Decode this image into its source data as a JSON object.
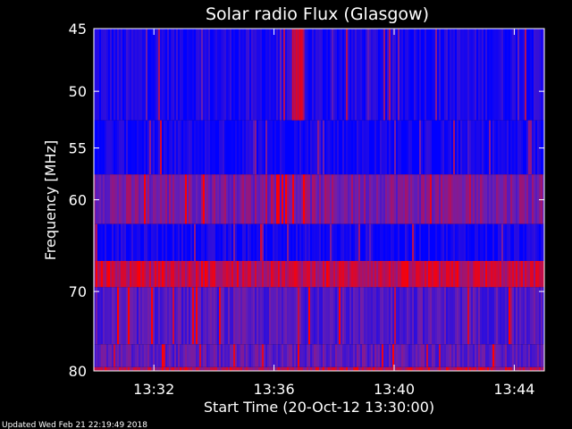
{
  "chart_data": {
    "type": "heatmap",
    "title": "Solar radio Flux (Glasgow)",
    "xlabel": "Start Time (20-Oct-12 13:30:00)",
    "ylabel": "Frequency [MHz]",
    "x_ticks": [
      "13:32",
      "13:36",
      "13:40",
      "13:44"
    ],
    "x_tick_minutes": [
      2,
      6,
      10,
      14
    ],
    "xlim_minutes": [
      0,
      15
    ],
    "y_ticks": [
      45,
      50,
      55,
      60,
      70,
      80
    ],
    "ylim": [
      45,
      80
    ],
    "y_scale": "log",
    "colormap": {
      "low": "#0000ff",
      "mid": "#6a1fb0",
      "high": "#ff0000"
    },
    "frequency_bands": [
      {
        "from_mhz": 45,
        "to_mhz": 52.5,
        "intensity": 0.12
      },
      {
        "from_mhz": 52.5,
        "to_mhz": 57.5,
        "intensity": 0.08
      },
      {
        "from_mhz": 57.5,
        "to_mhz": 62.5,
        "intensity": 0.55
      },
      {
        "from_mhz": 62.5,
        "to_mhz": 66.5,
        "intensity": 0.07
      },
      {
        "from_mhz": 66.5,
        "to_mhz": 69.5,
        "intensity": 0.78
      },
      {
        "from_mhz": 69.5,
        "to_mhz": 76.5,
        "intensity": 0.38
      },
      {
        "from_mhz": 76.5,
        "to_mhz": 79.5,
        "intensity": 0.42
      },
      {
        "from_mhz": 79.5,
        "to_mhz": 80,
        "intensity": 0.75
      }
    ],
    "burst": {
      "from_minutes": 6.6,
      "to_minutes": 7.0,
      "from_mhz": 45,
      "to_mhz": 52.5,
      "intensity": 0.85
    }
  },
  "footer": "Updated Wed Feb 21 22:19:49 2018"
}
